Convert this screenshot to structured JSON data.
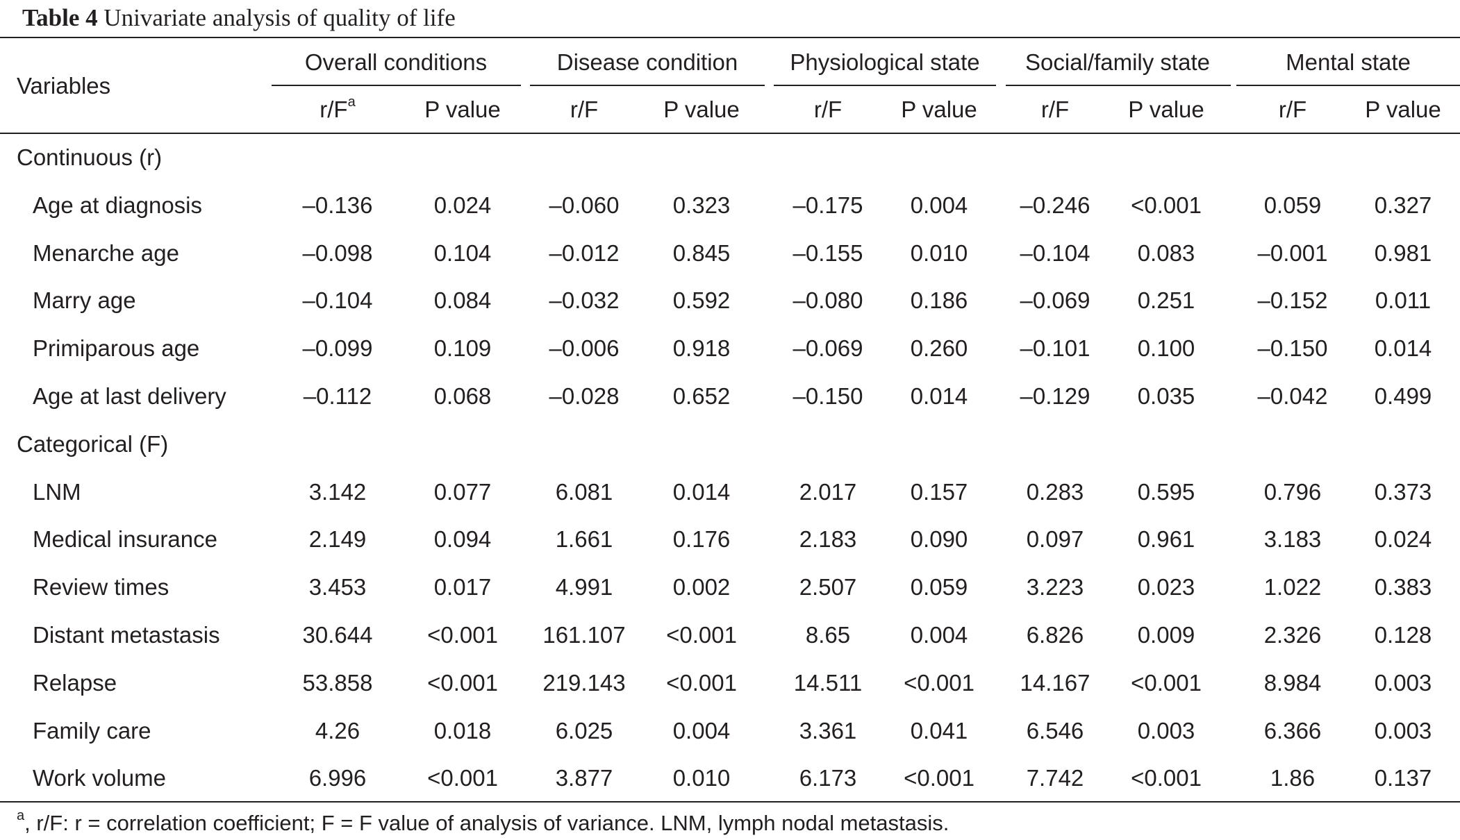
{
  "caption": {
    "label": "Table 4",
    "text": "Univariate analysis of quality of life"
  },
  "header": {
    "variables_label": "Variables",
    "groups": [
      "Overall conditions",
      "Disease condition",
      "Physiological state",
      "Social/family state",
      "Mental state"
    ],
    "sub_rf_first": "r/F",
    "sub_rf_first_sup": "a",
    "sub_rf": "r/F",
    "sub_p": "P value"
  },
  "sections": [
    {
      "label": "Continuous (r)",
      "rows": [
        {
          "name": "Age at diagnosis",
          "values": [
            "–0.136",
            "0.024",
            "–0.060",
            "0.323",
            "–0.175",
            "0.004",
            "–0.246",
            "<0.001",
            "0.059",
            "0.327"
          ]
        },
        {
          "name": "Menarche age",
          "values": [
            "–0.098",
            "0.104",
            "–0.012",
            "0.845",
            "–0.155",
            "0.010",
            "–0.104",
            "0.083",
            "–0.001",
            "0.981"
          ]
        },
        {
          "name": "Marry age",
          "values": [
            "–0.104",
            "0.084",
            "–0.032",
            "0.592",
            "–0.080",
            "0.186",
            "–0.069",
            "0.251",
            "–0.152",
            "0.011"
          ]
        },
        {
          "name": "Primiparous age",
          "values": [
            "–0.099",
            "0.109",
            "–0.006",
            "0.918",
            "–0.069",
            "0.260",
            "–0.101",
            "0.100",
            "–0.150",
            "0.014"
          ]
        },
        {
          "name": "Age at last delivery",
          "values": [
            "–0.112",
            "0.068",
            "–0.028",
            "0.652",
            "–0.150",
            "0.014",
            "–0.129",
            "0.035",
            "–0.042",
            "0.499"
          ]
        }
      ]
    },
    {
      "label": "Categorical (F)",
      "rows": [
        {
          "name": "LNM",
          "values": [
            "3.142",
            "0.077",
            "6.081",
            "0.014",
            "2.017",
            "0.157",
            "0.283",
            "0.595",
            "0.796",
            "0.373"
          ]
        },
        {
          "name": "Medical insurance",
          "values": [
            "2.149",
            "0.094",
            "1.661",
            "0.176",
            "2.183",
            "0.090",
            "0.097",
            "0.961",
            "3.183",
            "0.024"
          ]
        },
        {
          "name": "Review times",
          "values": [
            "3.453",
            "0.017",
            "4.991",
            "0.002",
            "2.507",
            "0.059",
            "3.223",
            "0.023",
            "1.022",
            "0.383"
          ]
        },
        {
          "name": "Distant metastasis",
          "values": [
            "30.644",
            "<0.001",
            "161.107",
            "<0.001",
            "8.65",
            "0.004",
            "6.826",
            "0.009",
            "2.326",
            "0.128"
          ]
        },
        {
          "name": "Relapse",
          "values": [
            "53.858",
            "<0.001",
            "219.143",
            "<0.001",
            "14.511",
            "<0.001",
            "14.167",
            "<0.001",
            "8.984",
            "0.003"
          ]
        },
        {
          "name": "Family care",
          "values": [
            "4.26",
            "0.018",
            "6.025",
            "0.004",
            "3.361",
            "0.041",
            "6.546",
            "0.003",
            "6.366",
            "0.003"
          ]
        },
        {
          "name": "Work volume",
          "values": [
            "6.996",
            "<0.001",
            "3.877",
            "0.010",
            "6.173",
            "<0.001",
            "7.742",
            "<0.001",
            "1.86",
            "0.137"
          ]
        }
      ]
    }
  ],
  "footnote": {
    "sup": "a",
    "text": ", r/F: r = correlation coefficient; F = F value of analysis of variance. LNM, lymph nodal metastasis."
  }
}
